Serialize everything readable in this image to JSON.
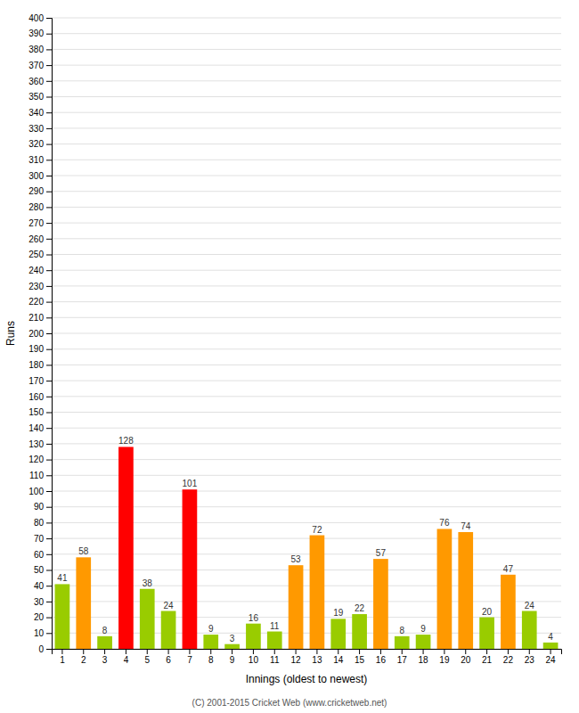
{
  "chart_data": {
    "type": "bar",
    "categories": [
      "1",
      "2",
      "3",
      "4",
      "5",
      "6",
      "7",
      "8",
      "9",
      "10",
      "11",
      "12",
      "13",
      "14",
      "15",
      "16",
      "17",
      "18",
      "19",
      "20",
      "21",
      "22",
      "23",
      "24"
    ],
    "values": [
      41,
      58,
      8,
      128,
      38,
      24,
      101,
      9,
      3,
      16,
      11,
      53,
      72,
      19,
      22,
      57,
      8,
      9,
      76,
      74,
      20,
      47,
      24,
      4
    ],
    "colors": [
      "#99cc00",
      "#ff9900",
      "#99cc00",
      "#ff0000",
      "#99cc00",
      "#99cc00",
      "#ff0000",
      "#99cc00",
      "#99cc00",
      "#99cc00",
      "#99cc00",
      "#ff9900",
      "#ff9900",
      "#99cc00",
      "#99cc00",
      "#ff9900",
      "#99cc00",
      "#99cc00",
      "#ff9900",
      "#ff9900",
      "#99cc00",
      "#ff9900",
      "#99cc00",
      "#99cc00"
    ],
    "xlabel": "Innings (oldest to newest)",
    "ylabel": "Runs",
    "ylim": [
      0,
      400
    ],
    "yticks": [
      0,
      10,
      20,
      30,
      40,
      50,
      60,
      70,
      80,
      90,
      100,
      110,
      120,
      130,
      140,
      150,
      160,
      170,
      180,
      190,
      200,
      210,
      220,
      230,
      240,
      250,
      260,
      270,
      280,
      290,
      300,
      310,
      320,
      330,
      340,
      350,
      360,
      370,
      380,
      390,
      400
    ],
    "grid": true,
    "data_labels": true,
    "footer": "(C) 2001-2015 Cricket Web (www.cricketweb.net)"
  }
}
